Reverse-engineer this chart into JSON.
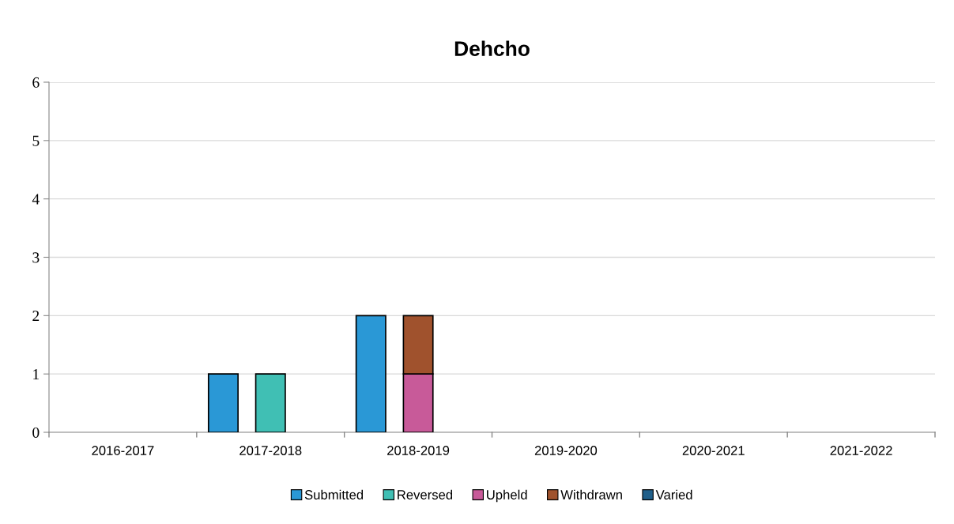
{
  "chart_data": {
    "type": "bar",
    "title": "Dehcho",
    "categories": [
      "2016-2017",
      "2017-2018",
      "2018-2019",
      "2019-2020",
      "2020-2021",
      "2021-2022"
    ],
    "series": [
      {
        "name": "Submitted",
        "color": "#2a98d6",
        "values": [
          0,
          1,
          2,
          0,
          0,
          0
        ]
      },
      {
        "name": "Reversed",
        "color": "#40bfb4",
        "values": [
          0,
          1,
          0,
          0,
          0,
          0
        ]
      },
      {
        "name": "Upheld",
        "color": "#c85a99",
        "values": [
          0,
          0,
          1,
          0,
          0,
          0
        ]
      },
      {
        "name": "Withdrawn",
        "color": "#a0522d",
        "base": [
          null,
          null,
          1,
          null,
          null,
          null
        ],
        "values": [
          0,
          0,
          1,
          0,
          0,
          0
        ]
      },
      {
        "name": "Varied",
        "color": "#1f5f8a",
        "values": [
          0,
          0,
          0,
          0,
          0,
          0
        ]
      }
    ],
    "ylim": [
      0,
      6
    ],
    "yticks": [
      0,
      1,
      2,
      3,
      4,
      5,
      6
    ],
    "grid": "y",
    "legend": "bottom"
  }
}
